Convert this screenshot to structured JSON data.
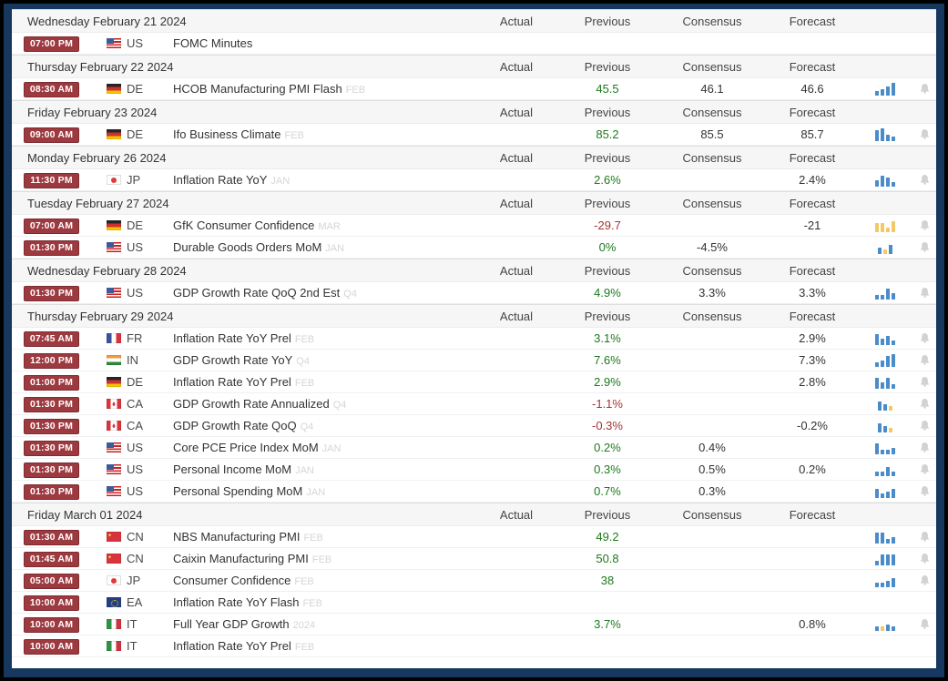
{
  "columns": {
    "actual": "Actual",
    "previous": "Previous",
    "consensus": "Consensus",
    "forecast": "Forecast"
  },
  "colors": {
    "frame": "#16375e",
    "badge_bg": "#9d3a40",
    "badge_border": "#7c2b31",
    "positive": "#1d7a1d",
    "negative": "#a83232",
    "spark_blue": "#4a8cc9",
    "spark_yellow": "#f3c967",
    "bell": "#d2d2d2"
  },
  "days": [
    {
      "date": "Wednesday February 21 2024",
      "events": [
        {
          "time": "07:00 PM",
          "flag": "us",
          "cc": "US",
          "name": "FOMC Minutes",
          "ref": "",
          "actual": "",
          "previous": "",
          "prev_tone": "",
          "consensus": "",
          "forecast": "",
          "spark": null,
          "bell": false
        }
      ]
    },
    {
      "date": "Thursday February 22 2024",
      "events": [
        {
          "time": "08:30 AM",
          "flag": "de",
          "cc": "DE",
          "name": "HCOB Manufacturing PMI Flash",
          "ref": "FEB",
          "actual": "",
          "previous": "45.5",
          "prev_tone": "pos",
          "consensus": "46.1",
          "forecast": "46.6",
          "spark": [
            [
              1,
              "b"
            ],
            [
              2,
              "b"
            ],
            [
              3,
              "b"
            ],
            [
              5,
              "b"
            ]
          ],
          "bell": true
        }
      ]
    },
    {
      "date": "Friday February 23 2024",
      "events": [
        {
          "time": "09:00 AM",
          "flag": "de",
          "cc": "DE",
          "name": "Ifo Business Climate",
          "ref": "FEB",
          "actual": "",
          "previous": "85.2",
          "prev_tone": "pos",
          "consensus": "85.5",
          "forecast": "85.7",
          "spark": [
            [
              4,
              "b"
            ],
            [
              5,
              "b"
            ],
            [
              2,
              "b"
            ],
            [
              1,
              "b"
            ]
          ],
          "bell": true
        }
      ]
    },
    {
      "date": "Monday February 26 2024",
      "events": [
        {
          "time": "11:30 PM",
          "flag": "jp",
          "cc": "JP",
          "name": "Inflation Rate YoY",
          "ref": "JAN",
          "actual": "",
          "previous": "2.6%",
          "prev_tone": "pos",
          "consensus": "",
          "forecast": "2.4%",
          "spark": [
            [
              2,
              "b"
            ],
            [
              4,
              "b"
            ],
            [
              3,
              "b"
            ],
            [
              1,
              "b"
            ]
          ],
          "bell": true
        }
      ]
    },
    {
      "date": "Tuesday February 27 2024",
      "events": [
        {
          "time": "07:00 AM",
          "flag": "de",
          "cc": "DE",
          "name": "GfK Consumer Confidence",
          "ref": "MAR",
          "actual": "",
          "previous": "-29.7",
          "prev_tone": "neg",
          "consensus": "",
          "forecast": "-21",
          "spark": [
            [
              3,
              "y"
            ],
            [
              3,
              "y"
            ],
            [
              1,
              "y"
            ],
            [
              4,
              "y"
            ]
          ],
          "bell": true
        },
        {
          "time": "01:30 PM",
          "flag": "us",
          "cc": "US",
          "name": "Durable Goods Orders MoM",
          "ref": "JAN",
          "actual": "",
          "previous": "0%",
          "prev_tone": "pos",
          "consensus": "-4.5%",
          "forecast": "",
          "spark": [
            [
              2,
              "b"
            ],
            [
              1,
              "y"
            ],
            [
              3,
              "b"
            ]
          ],
          "bell": true
        }
      ]
    },
    {
      "date": "Wednesday February 28 2024",
      "events": [
        {
          "time": "01:30 PM",
          "flag": "us",
          "cc": "US",
          "name": "GDP Growth Rate QoQ 2nd Est",
          "ref": "Q4",
          "actual": "",
          "previous": "4.9%",
          "prev_tone": "pos",
          "consensus": "3.3%",
          "forecast": "3.3%",
          "spark": [
            [
              1,
              "b"
            ],
            [
              1,
              "b"
            ],
            [
              4,
              "b"
            ],
            [
              2,
              "b"
            ]
          ],
          "bell": true
        }
      ]
    },
    {
      "date": "Thursday February 29 2024",
      "events": [
        {
          "time": "07:45 AM",
          "flag": "fr",
          "cc": "FR",
          "name": "Inflation Rate YoY Prel",
          "ref": "FEB",
          "actual": "",
          "previous": "3.1%",
          "prev_tone": "pos",
          "consensus": "",
          "forecast": "2.9%",
          "spark": [
            [
              4,
              "b"
            ],
            [
              2,
              "b"
            ],
            [
              3,
              "b"
            ],
            [
              1,
              "b"
            ]
          ],
          "bell": true
        },
        {
          "time": "12:00 PM",
          "flag": "in",
          "cc": "IN",
          "name": "GDP Growth Rate YoY",
          "ref": "Q4",
          "actual": "",
          "previous": "7.6%",
          "prev_tone": "pos",
          "consensus": "",
          "forecast": "7.3%",
          "spark": [
            [
              1,
              "b"
            ],
            [
              2,
              "b"
            ],
            [
              4,
              "b"
            ],
            [
              5,
              "b"
            ]
          ],
          "bell": true
        },
        {
          "time": "01:00 PM",
          "flag": "de",
          "cc": "DE",
          "name": "Inflation Rate YoY Prel",
          "ref": "FEB",
          "actual": "",
          "previous": "2.9%",
          "prev_tone": "pos",
          "consensus": "",
          "forecast": "2.8%",
          "spark": [
            [
              4,
              "b"
            ],
            [
              2,
              "b"
            ],
            [
              4,
              "b"
            ],
            [
              1,
              "b"
            ]
          ],
          "bell": true
        },
        {
          "time": "01:30 PM",
          "flag": "ca",
          "cc": "CA",
          "name": "GDP Growth Rate Annualized",
          "ref": "Q4",
          "actual": "",
          "previous": "-1.1%",
          "prev_tone": "neg",
          "consensus": "",
          "forecast": "",
          "spark": [
            [
              3,
              "b"
            ],
            [
              2,
              "b"
            ],
            [
              1,
              "y"
            ]
          ],
          "bell": true
        },
        {
          "time": "01:30 PM",
          "flag": "ca",
          "cc": "CA",
          "name": "GDP Growth Rate QoQ",
          "ref": "Q4",
          "actual": "",
          "previous": "-0.3%",
          "prev_tone": "neg",
          "consensus": "",
          "forecast": "-0.2%",
          "spark": [
            [
              3,
              "b"
            ],
            [
              2,
              "b"
            ],
            [
              1,
              "y"
            ]
          ],
          "bell": true
        },
        {
          "time": "01:30 PM",
          "flag": "us",
          "cc": "US",
          "name": "Core PCE Price Index MoM",
          "ref": "JAN",
          "actual": "",
          "previous": "0.2%",
          "prev_tone": "pos",
          "consensus": "0.4%",
          "forecast": "",
          "spark": [
            [
              4,
              "b"
            ],
            [
              1,
              "b"
            ],
            [
              1,
              "b"
            ],
            [
              2,
              "b"
            ]
          ],
          "bell": true
        },
        {
          "time": "01:30 PM",
          "flag": "us",
          "cc": "US",
          "name": "Personal Income MoM",
          "ref": "JAN",
          "actual": "",
          "previous": "0.3%",
          "prev_tone": "pos",
          "consensus": "0.5%",
          "forecast": "0.2%",
          "spark": [
            [
              1,
              "b"
            ],
            [
              1,
              "b"
            ],
            [
              3,
              "b"
            ],
            [
              1,
              "b"
            ]
          ],
          "bell": true
        },
        {
          "time": "01:30 PM",
          "flag": "us",
          "cc": "US",
          "name": "Personal Spending MoM",
          "ref": "JAN",
          "actual": "",
          "previous": "0.7%",
          "prev_tone": "pos",
          "consensus": "0.3%",
          "forecast": "",
          "spark": [
            [
              3,
              "b"
            ],
            [
              1,
              "b"
            ],
            [
              2,
              "b"
            ],
            [
              3,
              "b"
            ]
          ],
          "bell": true
        }
      ]
    },
    {
      "date": "Friday March 01 2024",
      "events": [
        {
          "time": "01:30 AM",
          "flag": "cn",
          "cc": "CN",
          "name": "NBS Manufacturing PMI",
          "ref": "FEB",
          "actual": "",
          "previous": "49.2",
          "prev_tone": "pos",
          "consensus": "",
          "forecast": "",
          "spark": [
            [
              4,
              "b"
            ],
            [
              4,
              "b"
            ],
            [
              1,
              "b"
            ],
            [
              2,
              "b"
            ]
          ],
          "bell": true
        },
        {
          "time": "01:45 AM",
          "flag": "cn",
          "cc": "CN",
          "name": "Caixin Manufacturing PMI",
          "ref": "FEB",
          "actual": "",
          "previous": "50.8",
          "prev_tone": "pos",
          "consensus": "",
          "forecast": "",
          "spark": [
            [
              1,
              "b"
            ],
            [
              4,
              "b"
            ],
            [
              4,
              "b"
            ],
            [
              4,
              "b"
            ]
          ],
          "bell": true
        },
        {
          "time": "05:00 AM",
          "flag": "jp",
          "cc": "JP",
          "name": "Consumer Confidence",
          "ref": "FEB",
          "actual": "",
          "previous": "38",
          "prev_tone": "pos",
          "consensus": "",
          "forecast": "",
          "spark": [
            [
              1,
              "b"
            ],
            [
              1,
              "b"
            ],
            [
              2,
              "b"
            ],
            [
              3,
              "b"
            ]
          ],
          "bell": true
        },
        {
          "time": "10:00 AM",
          "flag": "ea",
          "cc": "EA",
          "name": "Inflation Rate YoY Flash",
          "ref": "FEB",
          "actual": "",
          "previous": "",
          "prev_tone": "",
          "consensus": "",
          "forecast": "",
          "spark": null,
          "bell": false
        },
        {
          "time": "10:00 AM",
          "flag": "it",
          "cc": "IT",
          "name": "Full Year GDP Growth",
          "ref": "2024",
          "actual": "",
          "previous": "3.7%",
          "prev_tone": "pos",
          "consensus": "",
          "forecast": "0.8%",
          "spark": [
            [
              1,
              "b"
            ],
            [
              1,
              "y"
            ],
            [
              2,
              "b"
            ],
            [
              1,
              "b"
            ]
          ],
          "bell": true
        },
        {
          "time": "10:00 AM",
          "flag": "it",
          "cc": "IT",
          "name": "Inflation Rate YoY Prel",
          "ref": "FEB",
          "actual": "",
          "previous": "",
          "prev_tone": "",
          "consensus": "",
          "forecast": "",
          "spark": null,
          "bell": false
        }
      ]
    }
  ]
}
